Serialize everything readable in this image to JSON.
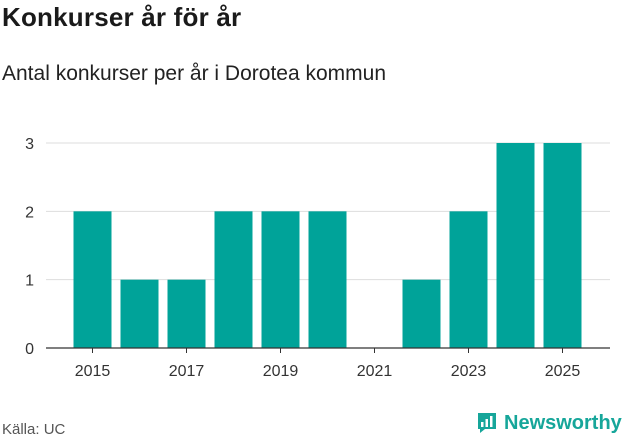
{
  "title": "Konkurser år för år",
  "subtitle": "Antal konkurser per år i Dorotea kommun",
  "source": "Källa: UC",
  "brand": {
    "name": "Newsworthy",
    "icon": "newsworthy-logo-icon"
  },
  "colors": {
    "bar": "#00a399",
    "grid": "#dddddd",
    "axis": "#333333",
    "brand": "#16a69a"
  },
  "chart_data": {
    "type": "bar",
    "title": "Konkurser år för år",
    "subtitle": "Antal konkurser per år i Dorotea kommun",
    "xlabel": "",
    "ylabel": "",
    "categories": [
      "2015",
      "2016",
      "2017",
      "2018",
      "2019",
      "2020",
      "2021",
      "2022",
      "2023",
      "2024",
      "2025"
    ],
    "values": [
      2,
      1,
      1,
      2,
      2,
      2,
      0,
      1,
      2,
      3,
      3
    ],
    "ylim": [
      0,
      3
    ],
    "yticks": [
      "0",
      "1",
      "2",
      "3"
    ],
    "xticks": [
      "2015",
      "2017",
      "2019",
      "2021",
      "2023",
      "2025"
    ],
    "grid": true,
    "legend": "none"
  }
}
